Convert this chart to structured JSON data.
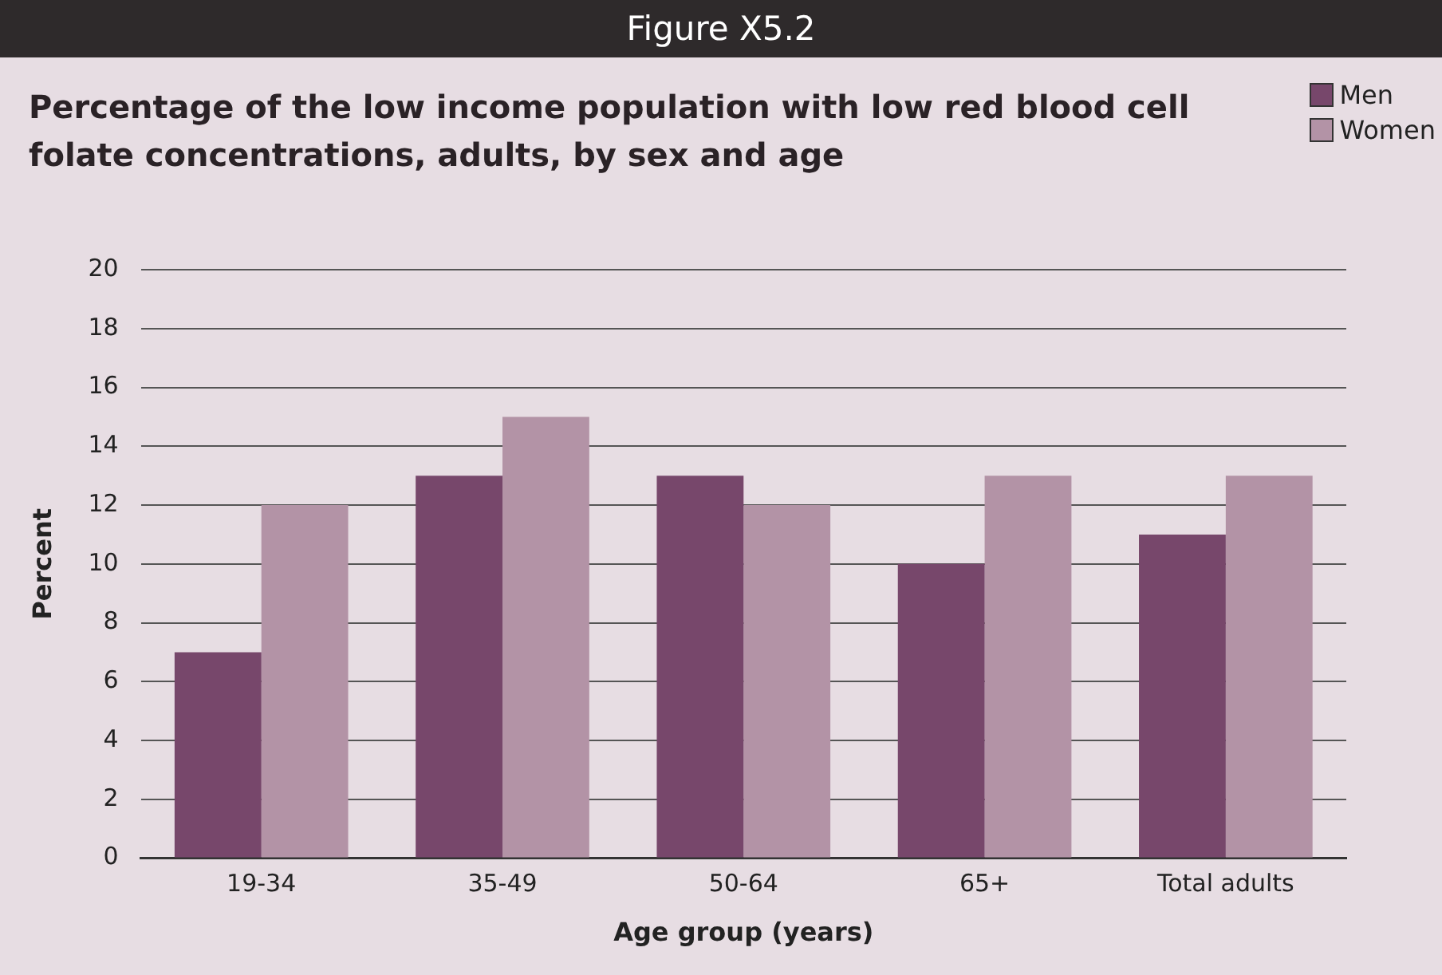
{
  "chart_data": {
    "type": "bar",
    "title": "Figure X5.2",
    "subtitle": "Percentage of the low income population with low red blood cell folate concentrations, adults, by sex and age",
    "xlabel": "Age group (years)",
    "ylabel": "Percent",
    "categories": [
      "19-34",
      "35-49",
      "50-64",
      "65+",
      "Total adults"
    ],
    "series": [
      {
        "name": "Men",
        "color": "#77476b",
        "values": [
          7,
          13,
          13,
          10,
          11
        ]
      },
      {
        "name": "Women",
        "color": "#b393a6",
        "values": [
          12,
          15,
          12,
          13,
          13
        ]
      }
    ],
    "ylim": [
      0,
      20
    ],
    "yticks": [
      0,
      2,
      4,
      6,
      8,
      10,
      12,
      14,
      16,
      18,
      20
    ],
    "grid": "y",
    "legend": "top right"
  }
}
